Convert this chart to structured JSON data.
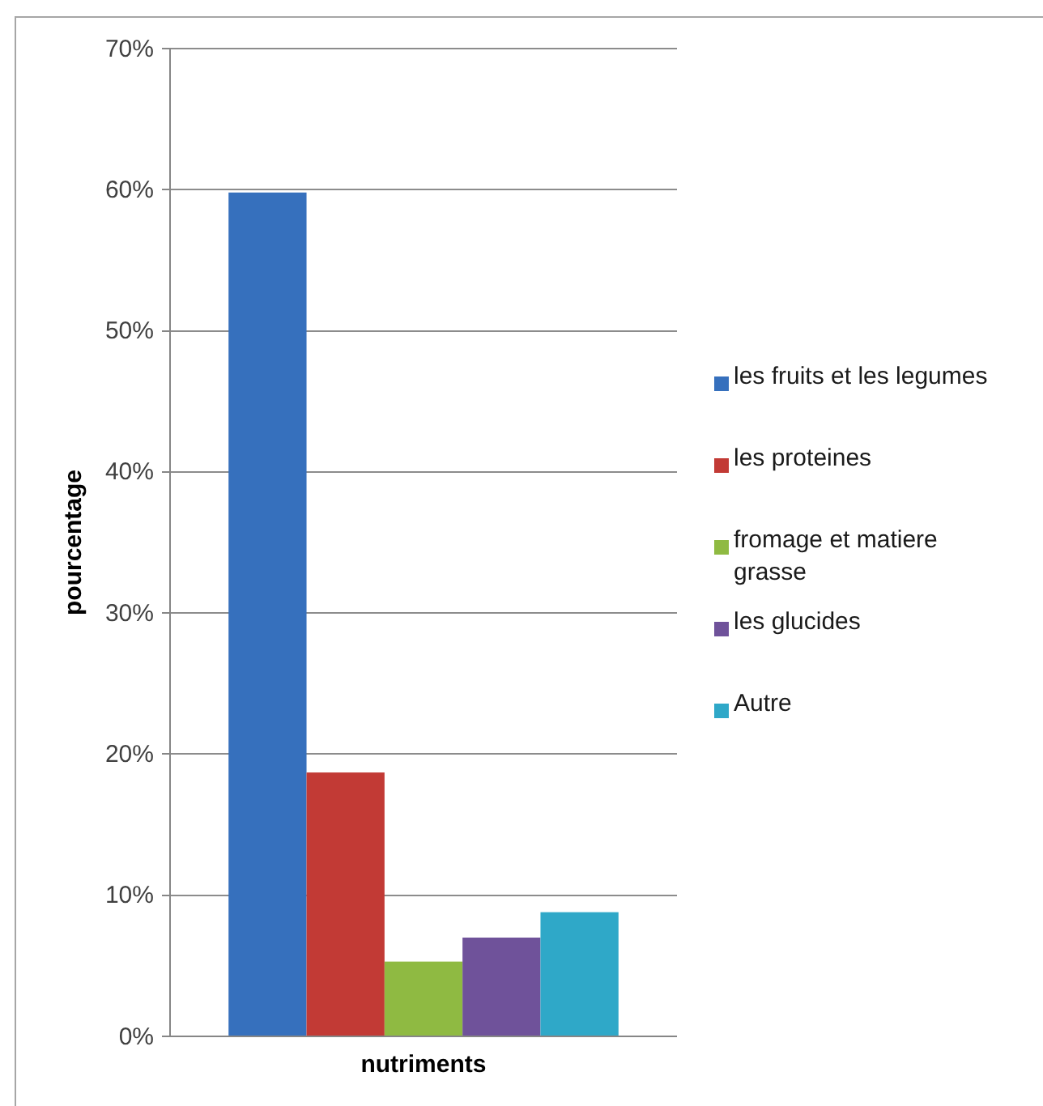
{
  "chart_data": {
    "type": "bar",
    "xlabel": "nutriments",
    "ylabel": "pourcentage",
    "categories": [
      null
    ],
    "series": [
      {
        "name": "les fruits et les legumes",
        "color": "#3670bd",
        "values": [
          59.8
        ]
      },
      {
        "name": "les proteines",
        "color": "#c23a35",
        "values": [
          18.7
        ]
      },
      {
        "name": "fromage et matiere grasse",
        "color": "#8fba42",
        "values": [
          5.3
        ]
      },
      {
        "name": "les glucides",
        "color": "#6f529a",
        "values": [
          7
        ]
      },
      {
        "name": "Autre",
        "color": "#2fa8c8",
        "values": [
          8.8
        ]
      }
    ],
    "ylim": [
      0,
      70
    ],
    "yticks": [
      {
        "value": 0,
        "label": "0%"
      },
      {
        "value": 10,
        "label": "10%"
      },
      {
        "value": 20,
        "label": "20%"
      },
      {
        "value": 30,
        "label": "30%"
      },
      {
        "value": 40,
        "label": "40%"
      },
      {
        "value": 50,
        "label": "50%"
      },
      {
        "value": 60,
        "label": "60%"
      },
      {
        "value": 70,
        "label": "70%"
      }
    ],
    "grid": "y",
    "legend": "right"
  }
}
